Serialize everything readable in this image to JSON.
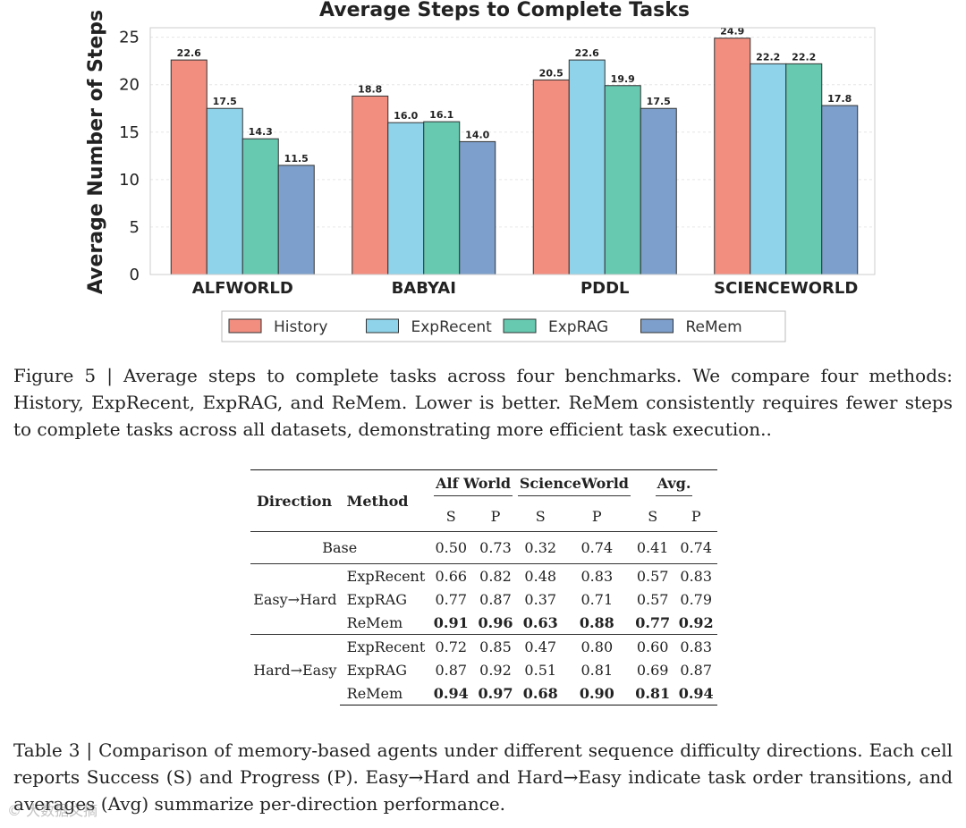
{
  "chart_data": {
    "type": "bar",
    "title": "Average Steps to Complete Tasks",
    "xlabel": "",
    "ylabel": "Average Number of Steps",
    "ylim": [
      0,
      26
    ],
    "yticks": [
      0,
      5,
      10,
      15,
      20,
      25
    ],
    "grid": true,
    "legend_position": "bottom",
    "categories": [
      "ALFWORLD",
      "BABYAI",
      "PDDL",
      "SCIENCEWORLD"
    ],
    "series": [
      {
        "name": "History",
        "color": "#f28e80",
        "values": [
          22.6,
          18.8,
          20.5,
          24.9
        ]
      },
      {
        "name": "ExpRecent",
        "color": "#8fd3ea",
        "values": [
          17.5,
          16.0,
          22.6,
          22.2
        ]
      },
      {
        "name": "ExpRAG",
        "color": "#66c9b0",
        "values": [
          14.3,
          16.1,
          19.9,
          22.2
        ]
      },
      {
        "name": "ReMem",
        "color": "#7d9fcb",
        "values": [
          11.5,
          14.0,
          17.5,
          17.8
        ]
      }
    ]
  },
  "figure_caption": "Figure 5 | Average steps to complete tasks across four benchmarks.  We compare four methods: History, ExpRecent, ExpRAG, and ReMem. Lower is better. ReMem consistently requires fewer steps to complete tasks across all datasets, demonstrating more efficient task execution..",
  "table": {
    "headers": {
      "direction": "Direction",
      "method": "Method",
      "groups": [
        "Alf World",
        "ScienceWorld",
        "Avg."
      ],
      "sub": [
        "S",
        "P",
        "S",
        "P",
        "S",
        "P"
      ]
    },
    "base": {
      "label": "Base",
      "values": [
        "0.50",
        "0.73",
        "0.32",
        "0.74",
        "0.41",
        "0.74"
      ]
    },
    "groups": [
      {
        "direction": "Easy→Hard",
        "rows": [
          {
            "method": "ExpRecent",
            "values": [
              "0.66",
              "0.82",
              "0.48",
              "0.83",
              "0.57",
              "0.83"
            ]
          },
          {
            "method": "ExpRAG",
            "values": [
              "0.77",
              "0.87",
              "0.37",
              "0.71",
              "0.57",
              "0.79"
            ]
          },
          {
            "method": "ReMem",
            "values": [
              "0.91",
              "0.96",
              "0.63",
              "0.88",
              "0.77",
              "0.92"
            ]
          }
        ]
      },
      {
        "direction": "Hard→Easy",
        "rows": [
          {
            "method": "ExpRecent",
            "values": [
              "0.72",
              "0.85",
              "0.47",
              "0.80",
              "0.60",
              "0.83"
            ]
          },
          {
            "method": "ExpRAG",
            "values": [
              "0.87",
              "0.92",
              "0.51",
              "0.81",
              "0.69",
              "0.87"
            ]
          },
          {
            "method": "ReMem",
            "values": [
              "0.94",
              "0.97",
              "0.68",
              "0.90",
              "0.81",
              "0.94"
            ]
          }
        ]
      }
    ]
  },
  "table_caption": "Table 3 | Comparison of memory-based agents under different sequence difficulty directions. Each cell reports Success (S) and Progress (P). Easy→Hard and Hard→Easy indicate task order transitions, and averages (Avg) summarize per-direction performance.",
  "watermark": "© 大数据文摘"
}
